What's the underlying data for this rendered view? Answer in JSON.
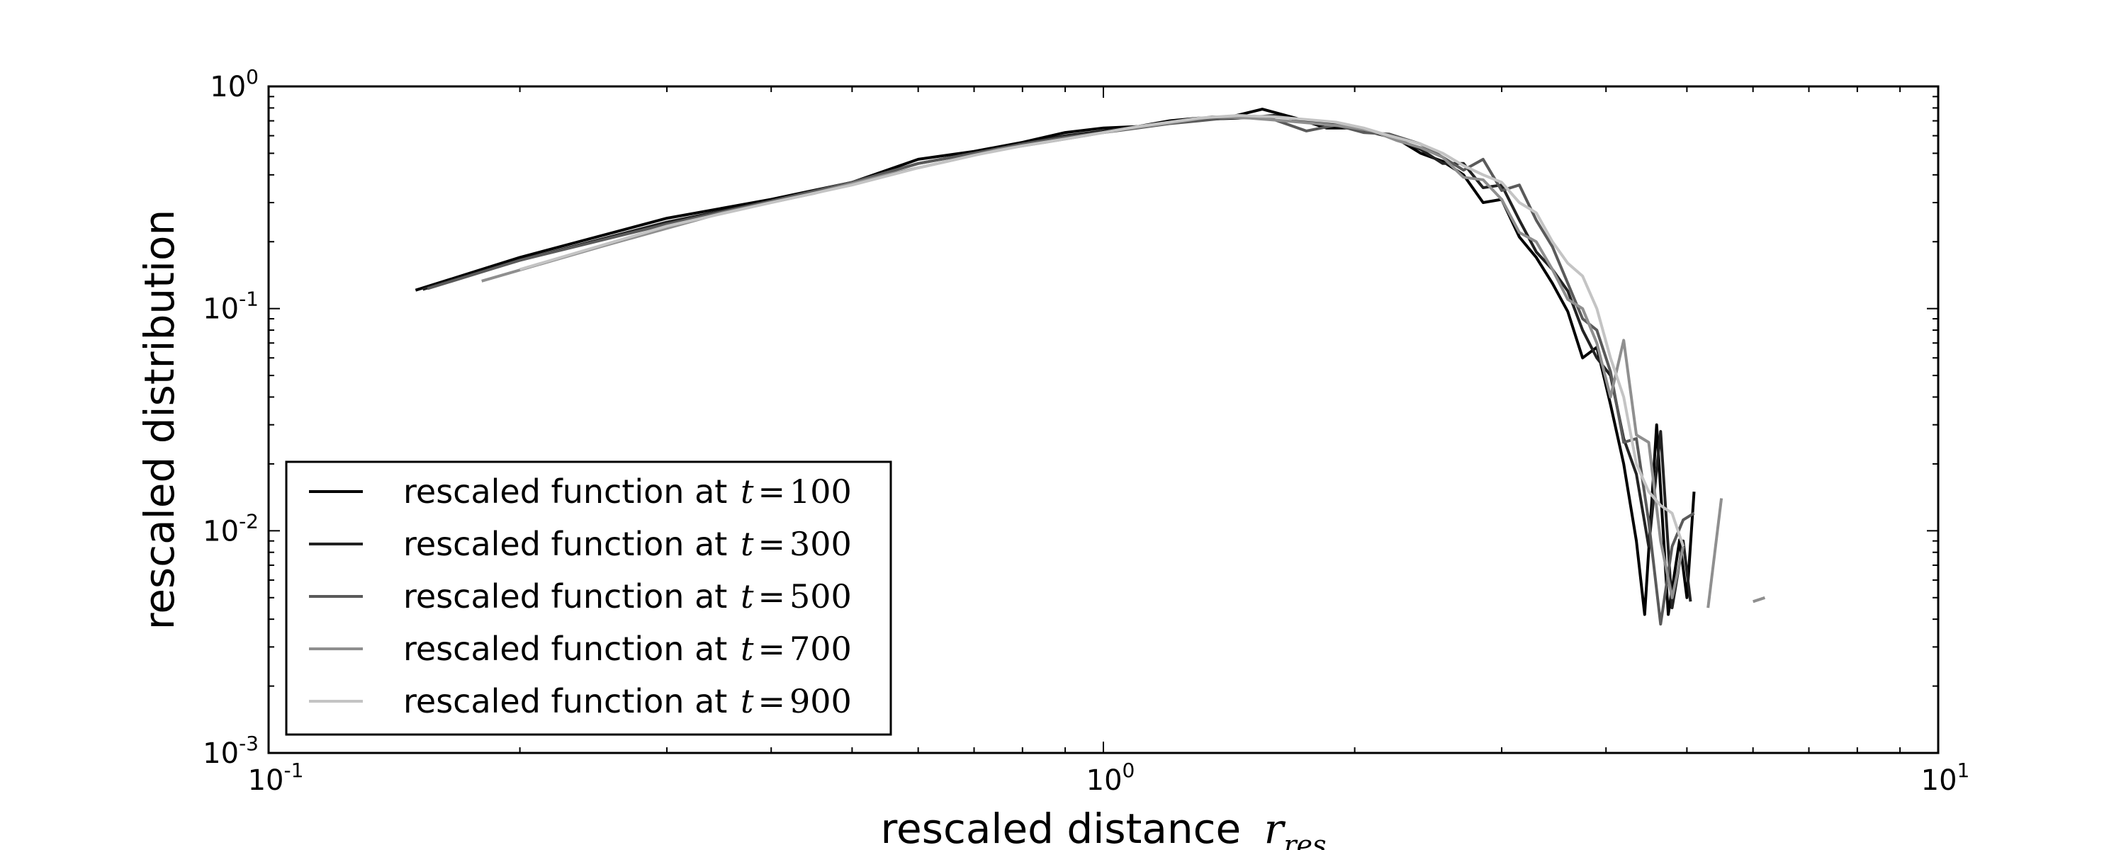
{
  "chart_data": {
    "type": "line",
    "title": "",
    "xlabel": "rescaled distance",
    "xlabel_symbol": "r",
    "xlabel_subscript": "res",
    "ylabel": "rescaled distribution",
    "x_scale": "log",
    "y_scale": "log",
    "xlim": [
      0.1,
      10
    ],
    "ylim": [
      0.001,
      1
    ],
    "x_ticks": [
      {
        "base": "10",
        "exp": "-1",
        "value": 0.1
      },
      {
        "base": "10",
        "exp": "0",
        "value": 1
      },
      {
        "base": "10",
        "exp": "1",
        "value": 10
      }
    ],
    "y_ticks": [
      {
        "base": "10",
        "exp": "0",
        "value": 1
      },
      {
        "base": "10",
        "exp": "-1",
        "value": 0.1
      },
      {
        "base": "10",
        "exp": "-2",
        "value": 0.01
      },
      {
        "base": "10",
        "exp": "-3",
        "value": 0.001
      }
    ],
    "grid": false,
    "legend_position": "lower-left",
    "series": [
      {
        "name": "rescaled function at t = 100",
        "label_prefix": "rescaled function at ",
        "label_var": "t",
        "label_value": "100",
        "color": "#000000",
        "points": [
          [
            0.15,
            0.121
          ],
          [
            0.2,
            0.17
          ],
          [
            0.3,
            0.255
          ],
          [
            0.4,
            0.31
          ],
          [
            0.5,
            0.37
          ],
          [
            0.6,
            0.47
          ],
          [
            0.7,
            0.51
          ],
          [
            0.8,
            0.56
          ],
          [
            0.9,
            0.62
          ],
          [
            1.0,
            0.65
          ],
          [
            1.1,
            0.66
          ],
          [
            1.2,
            0.7
          ],
          [
            1.3,
            0.72
          ],
          [
            1.4,
            0.72
          ],
          [
            1.55,
            0.79
          ],
          [
            1.7,
            0.72
          ],
          [
            1.85,
            0.65
          ],
          [
            2.0,
            0.65
          ],
          [
            2.1,
            0.62
          ],
          [
            2.25,
            0.58
          ],
          [
            2.4,
            0.5
          ],
          [
            2.55,
            0.46
          ],
          [
            2.7,
            0.4
          ],
          [
            2.85,
            0.3
          ],
          [
            3.0,
            0.31
          ],
          [
            3.15,
            0.21
          ],
          [
            3.3,
            0.17
          ],
          [
            3.45,
            0.13
          ],
          [
            3.6,
            0.097
          ],
          [
            3.75,
            0.06
          ],
          [
            3.9,
            0.067
          ],
          [
            4.05,
            0.037
          ],
          [
            4.2,
            0.02
          ],
          [
            4.35,
            0.009
          ],
          [
            4.45,
            0.0042
          ],
          [
            4.6,
            0.03
          ],
          [
            4.75,
            0.0042
          ],
          [
            4.9,
            0.0091
          ],
          [
            5.0,
            0.005
          ],
          [
            5.1,
            0.015
          ]
        ]
      },
      {
        "name": "rescaled function at t = 300",
        "label_prefix": "rescaled function at ",
        "label_var": "t",
        "label_value": "300",
        "color": "#222222",
        "points": [
          [
            0.153,
            0.122
          ],
          [
            0.2,
            0.165
          ],
          [
            0.3,
            0.245
          ],
          [
            0.4,
            0.305
          ],
          [
            0.5,
            0.37
          ],
          [
            0.6,
            0.45
          ],
          [
            0.7,
            0.5
          ],
          [
            0.8,
            0.55
          ],
          [
            0.9,
            0.6
          ],
          [
            1.0,
            0.63
          ],
          [
            1.1,
            0.66
          ],
          [
            1.2,
            0.69
          ],
          [
            1.3,
            0.71
          ],
          [
            1.45,
            0.72
          ],
          [
            1.6,
            0.74
          ],
          [
            1.75,
            0.7
          ],
          [
            1.9,
            0.67
          ],
          [
            2.05,
            0.64
          ],
          [
            2.2,
            0.6
          ],
          [
            2.4,
            0.52
          ],
          [
            2.55,
            0.45
          ],
          [
            2.7,
            0.45
          ],
          [
            2.85,
            0.35
          ],
          [
            3.0,
            0.36
          ],
          [
            3.15,
            0.25
          ],
          [
            3.3,
            0.18
          ],
          [
            3.45,
            0.15
          ],
          [
            3.6,
            0.12
          ],
          [
            3.75,
            0.08
          ],
          [
            3.9,
            0.06
          ],
          [
            4.05,
            0.05
          ],
          [
            4.2,
            0.026
          ],
          [
            4.35,
            0.018
          ],
          [
            4.5,
            0.0085
          ],
          [
            4.65,
            0.028
          ],
          [
            4.8,
            0.0045
          ],
          [
            4.95,
            0.009
          ],
          [
            5.05,
            0.0048
          ]
        ]
      },
      {
        "name": "rescaled function at t = 500",
        "label_prefix": "rescaled function at ",
        "label_var": "t",
        "label_value": "500",
        "color": "#5a5a5a",
        "points": [
          [
            0.155,
            0.123
          ],
          [
            0.2,
            0.165
          ],
          [
            0.3,
            0.24
          ],
          [
            0.4,
            0.305
          ],
          [
            0.5,
            0.37
          ],
          [
            0.6,
            0.45
          ],
          [
            0.7,
            0.5
          ],
          [
            0.8,
            0.55
          ],
          [
            0.9,
            0.59
          ],
          [
            1.0,
            0.62
          ],
          [
            1.1,
            0.65
          ],
          [
            1.2,
            0.68
          ],
          [
            1.3,
            0.7
          ],
          [
            1.45,
            0.73
          ],
          [
            1.6,
            0.71
          ],
          [
            1.75,
            0.63
          ],
          [
            1.9,
            0.67
          ],
          [
            2.05,
            0.62
          ],
          [
            2.2,
            0.61
          ],
          [
            2.4,
            0.55
          ],
          [
            2.55,
            0.48
          ],
          [
            2.7,
            0.42
          ],
          [
            2.85,
            0.47
          ],
          [
            3.0,
            0.34
          ],
          [
            3.15,
            0.36
          ],
          [
            3.3,
            0.25
          ],
          [
            3.45,
            0.19
          ],
          [
            3.6,
            0.13
          ],
          [
            3.75,
            0.09
          ],
          [
            3.9,
            0.08
          ],
          [
            4.05,
            0.052
          ],
          [
            4.2,
            0.025
          ],
          [
            4.35,
            0.026
          ],
          [
            4.5,
            0.011
          ],
          [
            4.65,
            0.0038
          ],
          [
            4.8,
            0.0085
          ],
          [
            4.95,
            0.0112
          ],
          [
            5.1,
            0.012
          ]
        ]
      },
      {
        "name": "rescaled function at t = 700",
        "label_prefix": "rescaled function at ",
        "label_var": "t",
        "label_value": "700",
        "color": "#8f8f8f",
        "points": [
          [
            0.18,
            0.133
          ],
          [
            0.25,
            0.19
          ],
          [
            0.35,
            0.27
          ],
          [
            0.45,
            0.33
          ],
          [
            0.55,
            0.4
          ],
          [
            0.65,
            0.46
          ],
          [
            0.75,
            0.52
          ],
          [
            0.85,
            0.56
          ],
          [
            0.95,
            0.6
          ],
          [
            1.05,
            0.64
          ],
          [
            1.15,
            0.67
          ],
          [
            1.25,
            0.7
          ],
          [
            1.35,
            0.73
          ],
          [
            1.5,
            0.72
          ],
          [
            1.65,
            0.7
          ],
          [
            1.8,
            0.68
          ],
          [
            1.95,
            0.66
          ],
          [
            2.1,
            0.63
          ],
          [
            2.25,
            0.57
          ],
          [
            2.4,
            0.53
          ],
          [
            2.55,
            0.48
          ],
          [
            2.7,
            0.39
          ],
          [
            2.85,
            0.38
          ],
          [
            3.0,
            0.31
          ],
          [
            3.15,
            0.22
          ],
          [
            3.3,
            0.2
          ],
          [
            3.45,
            0.15
          ],
          [
            3.6,
            0.11
          ],
          [
            3.75,
            0.1
          ],
          [
            3.9,
            0.07
          ],
          [
            4.05,
            0.04
          ],
          [
            4.2,
            0.072
          ],
          [
            4.35,
            0.027
          ],
          [
            4.5,
            0.025
          ],
          [
            4.65,
            0.009
          ],
          [
            4.8,
            0.005
          ],
          [
            4.95,
            0.0085
          ]
        ]
      },
      {
        "name": "rescaled function at t = 900",
        "label_prefix": "rescaled function at ",
        "label_var": "t",
        "label_value": "900",
        "color": "#c4c4c4",
        "points": [
          [
            0.2,
            0.15
          ],
          [
            0.3,
            0.235
          ],
          [
            0.4,
            0.3
          ],
          [
            0.5,
            0.36
          ],
          [
            0.6,
            0.43
          ],
          [
            0.7,
            0.49
          ],
          [
            0.8,
            0.54
          ],
          [
            0.9,
            0.58
          ],
          [
            1.0,
            0.62
          ],
          [
            1.1,
            0.66
          ],
          [
            1.2,
            0.69
          ],
          [
            1.3,
            0.72
          ],
          [
            1.45,
            0.74
          ],
          [
            1.6,
            0.73
          ],
          [
            1.75,
            0.71
          ],
          [
            1.9,
            0.69
          ],
          [
            2.05,
            0.65
          ],
          [
            2.2,
            0.6
          ],
          [
            2.4,
            0.55
          ],
          [
            2.55,
            0.5
          ],
          [
            2.7,
            0.44
          ],
          [
            2.85,
            0.4
          ],
          [
            3.0,
            0.37
          ],
          [
            3.15,
            0.3
          ],
          [
            3.3,
            0.27
          ],
          [
            3.45,
            0.2
          ],
          [
            3.6,
            0.16
          ],
          [
            3.75,
            0.14
          ],
          [
            3.9,
            0.1
          ],
          [
            4.05,
            0.06
          ],
          [
            4.2,
            0.04
          ],
          [
            4.35,
            0.02
          ],
          [
            4.5,
            0.015
          ],
          [
            4.65,
            0.013
          ],
          [
            4.8,
            0.012
          ],
          [
            4.95,
            0.0085
          ]
        ]
      }
    ],
    "extra_segments": [
      {
        "color": "#8f8f8f",
        "points": [
          [
            5.3,
            0.0045
          ],
          [
            5.5,
            0.014
          ]
        ]
      },
      {
        "color": "#8f8f8f",
        "points": [
          [
            6.0,
            0.0048
          ],
          [
            6.2,
            0.005
          ]
        ]
      }
    ]
  }
}
